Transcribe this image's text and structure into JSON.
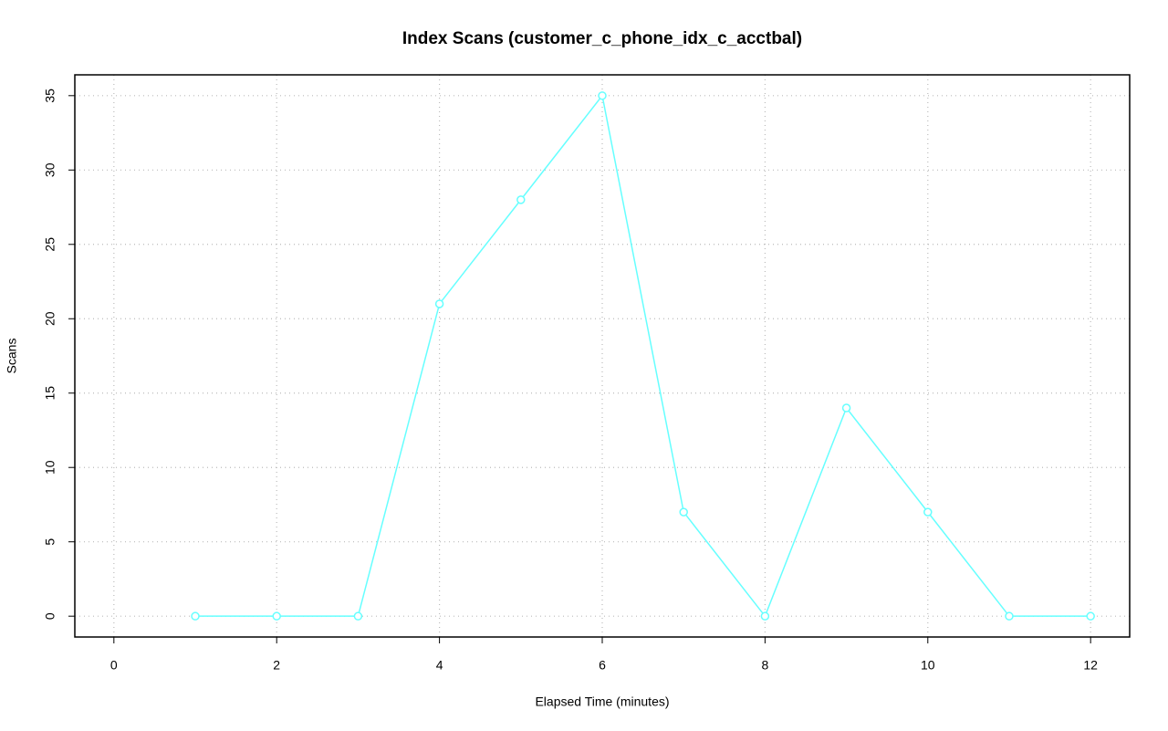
{
  "chart_data": {
    "type": "line",
    "title": "Index Scans (customer_c_phone_idx_c_acctbal)",
    "x_label": "Elapsed Time (minutes)",
    "y_label": "Scans",
    "x": [
      1,
      2,
      3,
      4,
      5,
      6,
      7,
      8,
      9,
      10,
      11,
      12
    ],
    "series": [
      {
        "color": "#66ffff",
        "values": [
          0,
          0,
          0,
          21,
          28,
          35,
          7,
          0,
          14,
          7,
          0,
          0
        ]
      }
    ],
    "xlim": [
      -0.48,
      12.48
    ],
    "xticks": [
      0,
      2,
      4,
      6,
      8,
      10,
      12
    ],
    "ylim": [
      -1.4,
      36.4
    ],
    "yticks": [
      0,
      5,
      10,
      15,
      20,
      25,
      30,
      35
    ],
    "grid": true
  }
}
